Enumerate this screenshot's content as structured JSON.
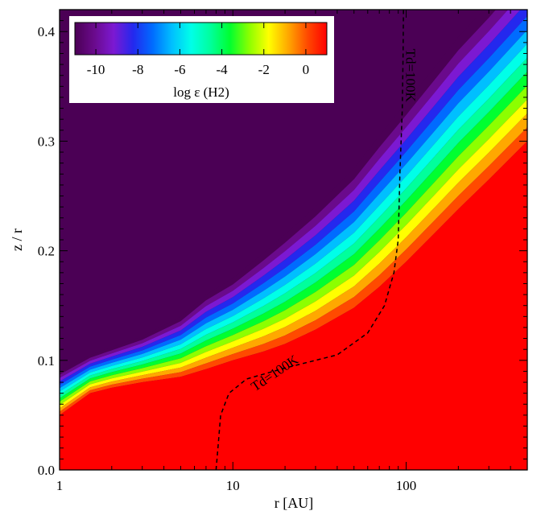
{
  "chart_data": {
    "type": "heatmap",
    "title": "",
    "xlabel": "r [AU]",
    "ylabel": "z / r",
    "x_scale": "log",
    "xlim": [
      1,
      500
    ],
    "ylim": [
      0.0,
      0.42
    ],
    "x_ticks": [
      1,
      10,
      100
    ],
    "x_tick_labels": [
      "1",
      "10",
      "100"
    ],
    "y_ticks": [
      0.0,
      0.1,
      0.2,
      0.3,
      0.4
    ],
    "y_tick_labels": [
      "0.0",
      "0.1",
      "0.2",
      "0.3",
      "0.4"
    ],
    "grid": false,
    "colorbar": {
      "label": "log ε (H2)",
      "range": [
        -11,
        1
      ],
      "ticks": [
        -10,
        -8,
        -6,
        -4,
        -2,
        0
      ],
      "tick_labels": [
        "-10",
        "-8",
        "-6",
        "-4",
        "-2",
        "0"
      ],
      "colormap": "rainbow",
      "placement": "top-left"
    },
    "colormap_stops": [
      "#4b0055",
      "#6a0a8c",
      "#7c19d2",
      "#2428ee",
      "#006bff",
      "#00bfff",
      "#00ffe8",
      "#00ff9c",
      "#00ff30",
      "#8cff00",
      "#ffff00",
      "#ffa800",
      "#ff4a00",
      "#ff0000"
    ],
    "field_description_front": {
      "r": [
        1,
        1.5,
        2,
        3,
        5,
        7,
        10,
        15,
        20,
        30,
        50,
        70,
        100,
        150,
        200,
        300,
        500
      ],
      "z_over_r_at_log_eps_minus9": [
        0.09,
        0.105,
        0.112,
        0.122,
        0.14,
        0.16,
        0.175,
        0.198,
        0.215,
        0.24,
        0.275,
        0.305,
        0.335,
        0.37,
        0.395,
        0.425,
        0.465
      ],
      "z_over_r_at_log_eps_0": [
        0.05,
        0.07,
        0.075,
        0.08,
        0.085,
        0.092,
        0.1,
        0.108,
        0.115,
        0.128,
        0.148,
        0.167,
        0.19,
        0.218,
        0.238,
        0.265,
        0.3
      ]
    },
    "series": [
      {
        "name": "Td=100K",
        "style": "dashed",
        "x": [
          8,
          8.2,
          8.5,
          9.5,
          12,
          20,
          40,
          60,
          75,
          85,
          90,
          92,
          95,
          96,
          96.5
        ],
        "y": [
          0.0,
          0.02,
          0.05,
          0.07,
          0.083,
          0.093,
          0.105,
          0.125,
          0.15,
          0.18,
          0.21,
          0.27,
          0.33,
          0.38,
          0.42
        ]
      }
    ],
    "annotations": [
      {
        "text": "Td=100K",
        "x": 18,
        "y": 0.085,
        "rotation_deg": -34
      },
      {
        "text": "Td=100K",
        "x": 100,
        "y": 0.36,
        "rotation_deg": 90
      }
    ]
  }
}
